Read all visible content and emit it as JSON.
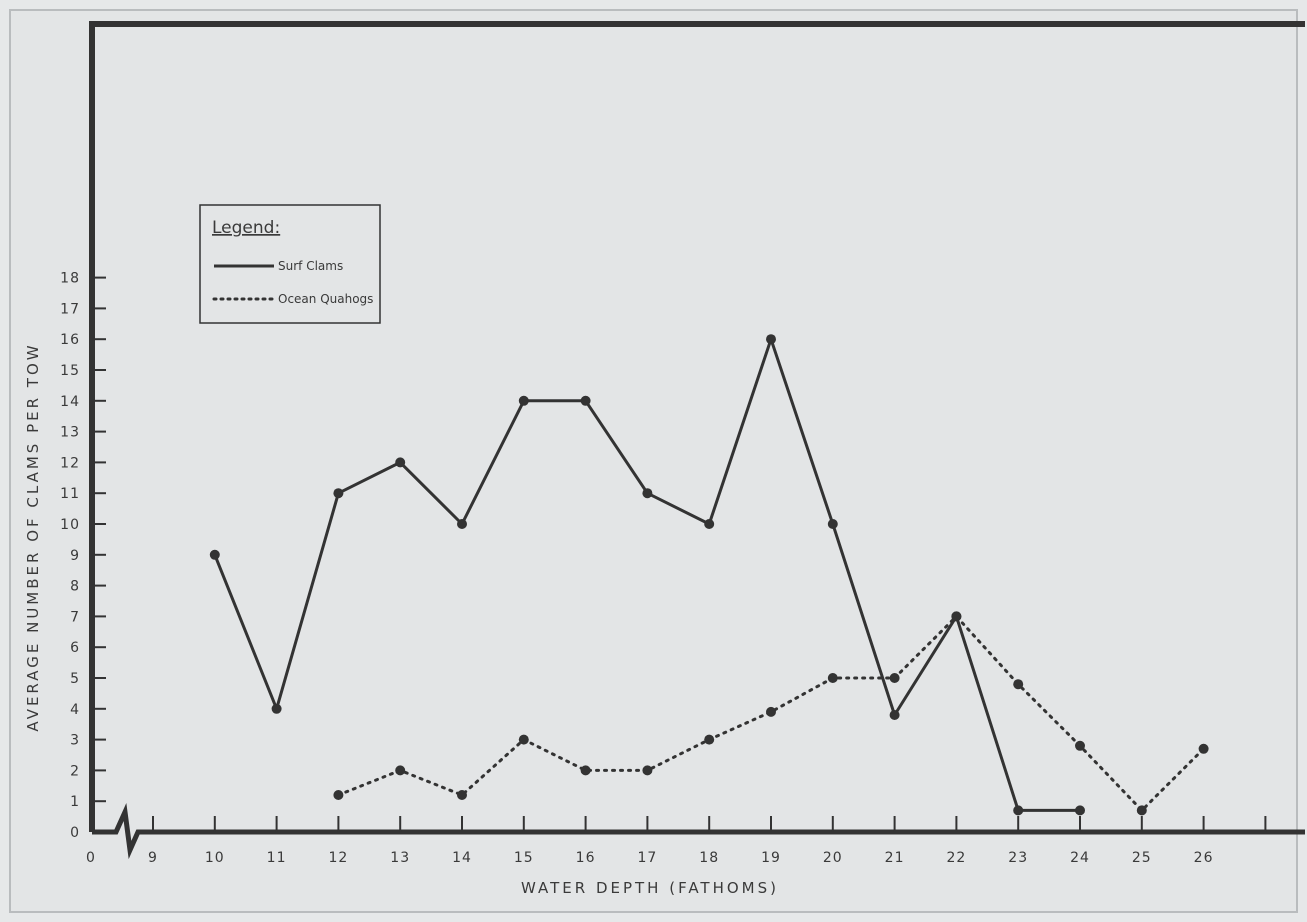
{
  "chart_data": {
    "type": "line",
    "title": "",
    "xlabel": "WATER DEPTH (FATHOMS)",
    "ylabel": "AVERAGE NUMBER OF CLAMS PER TOW",
    "x_tick_labels": [
      "0",
      "9",
      "10",
      "11",
      "12",
      "13",
      "14",
      "15",
      "16",
      "17",
      "18",
      "19",
      "20",
      "21",
      "22",
      "23",
      "24",
      "25",
      "26"
    ],
    "y_tick_labels": [
      "0",
      "1",
      "2",
      "3",
      "4",
      "5",
      "6",
      "7",
      "8",
      "9",
      "10",
      "11",
      "12",
      "13",
      "14",
      "15",
      "16",
      "17",
      "18"
    ],
    "xlim": [
      9,
      27
    ],
    "ylim": [
      0,
      18
    ],
    "x_axis_break": "between 0 and 9",
    "grid": false,
    "legend": {
      "title": "Legend:",
      "position": "top-left"
    },
    "series": [
      {
        "name": "Surf Clams",
        "style": "solid",
        "points": [
          [
            10,
            9
          ],
          [
            11,
            4
          ],
          [
            12,
            11
          ],
          [
            13,
            12
          ],
          [
            14,
            10
          ],
          [
            15,
            14
          ],
          [
            16,
            14
          ],
          [
            17,
            11
          ],
          [
            18,
            10
          ],
          [
            19,
            16
          ],
          [
            20,
            10
          ],
          [
            21,
            3.8
          ],
          [
            22,
            7
          ],
          [
            23,
            0.7
          ],
          [
            24,
            0.7
          ]
        ],
        "segments": [
          [
            10,
            11,
            12,
            13,
            14,
            15,
            16,
            17,
            18,
            19,
            20,
            21,
            22,
            23,
            24
          ]
        ]
      },
      {
        "name": "Ocean Quahogs",
        "style": "dotted",
        "points": [
          [
            12,
            1.2
          ],
          [
            13,
            2
          ],
          [
            14,
            1.2
          ],
          [
            15,
            3
          ],
          [
            16,
            2
          ],
          [
            17,
            2
          ],
          [
            18,
            3
          ],
          [
            19,
            3.9
          ],
          [
            20,
            5
          ],
          [
            21,
            5
          ],
          [
            22,
            7
          ],
          [
            23,
            4.8
          ],
          [
            24,
            2.8
          ],
          [
            25,
            0.7
          ],
          [
            26,
            2.7
          ]
        ],
        "segments": [
          [
            12,
            13,
            14,
            15,
            16,
            17,
            18,
            19,
            20,
            21,
            22,
            23,
            24,
            25,
            26
          ]
        ]
      }
    ]
  }
}
